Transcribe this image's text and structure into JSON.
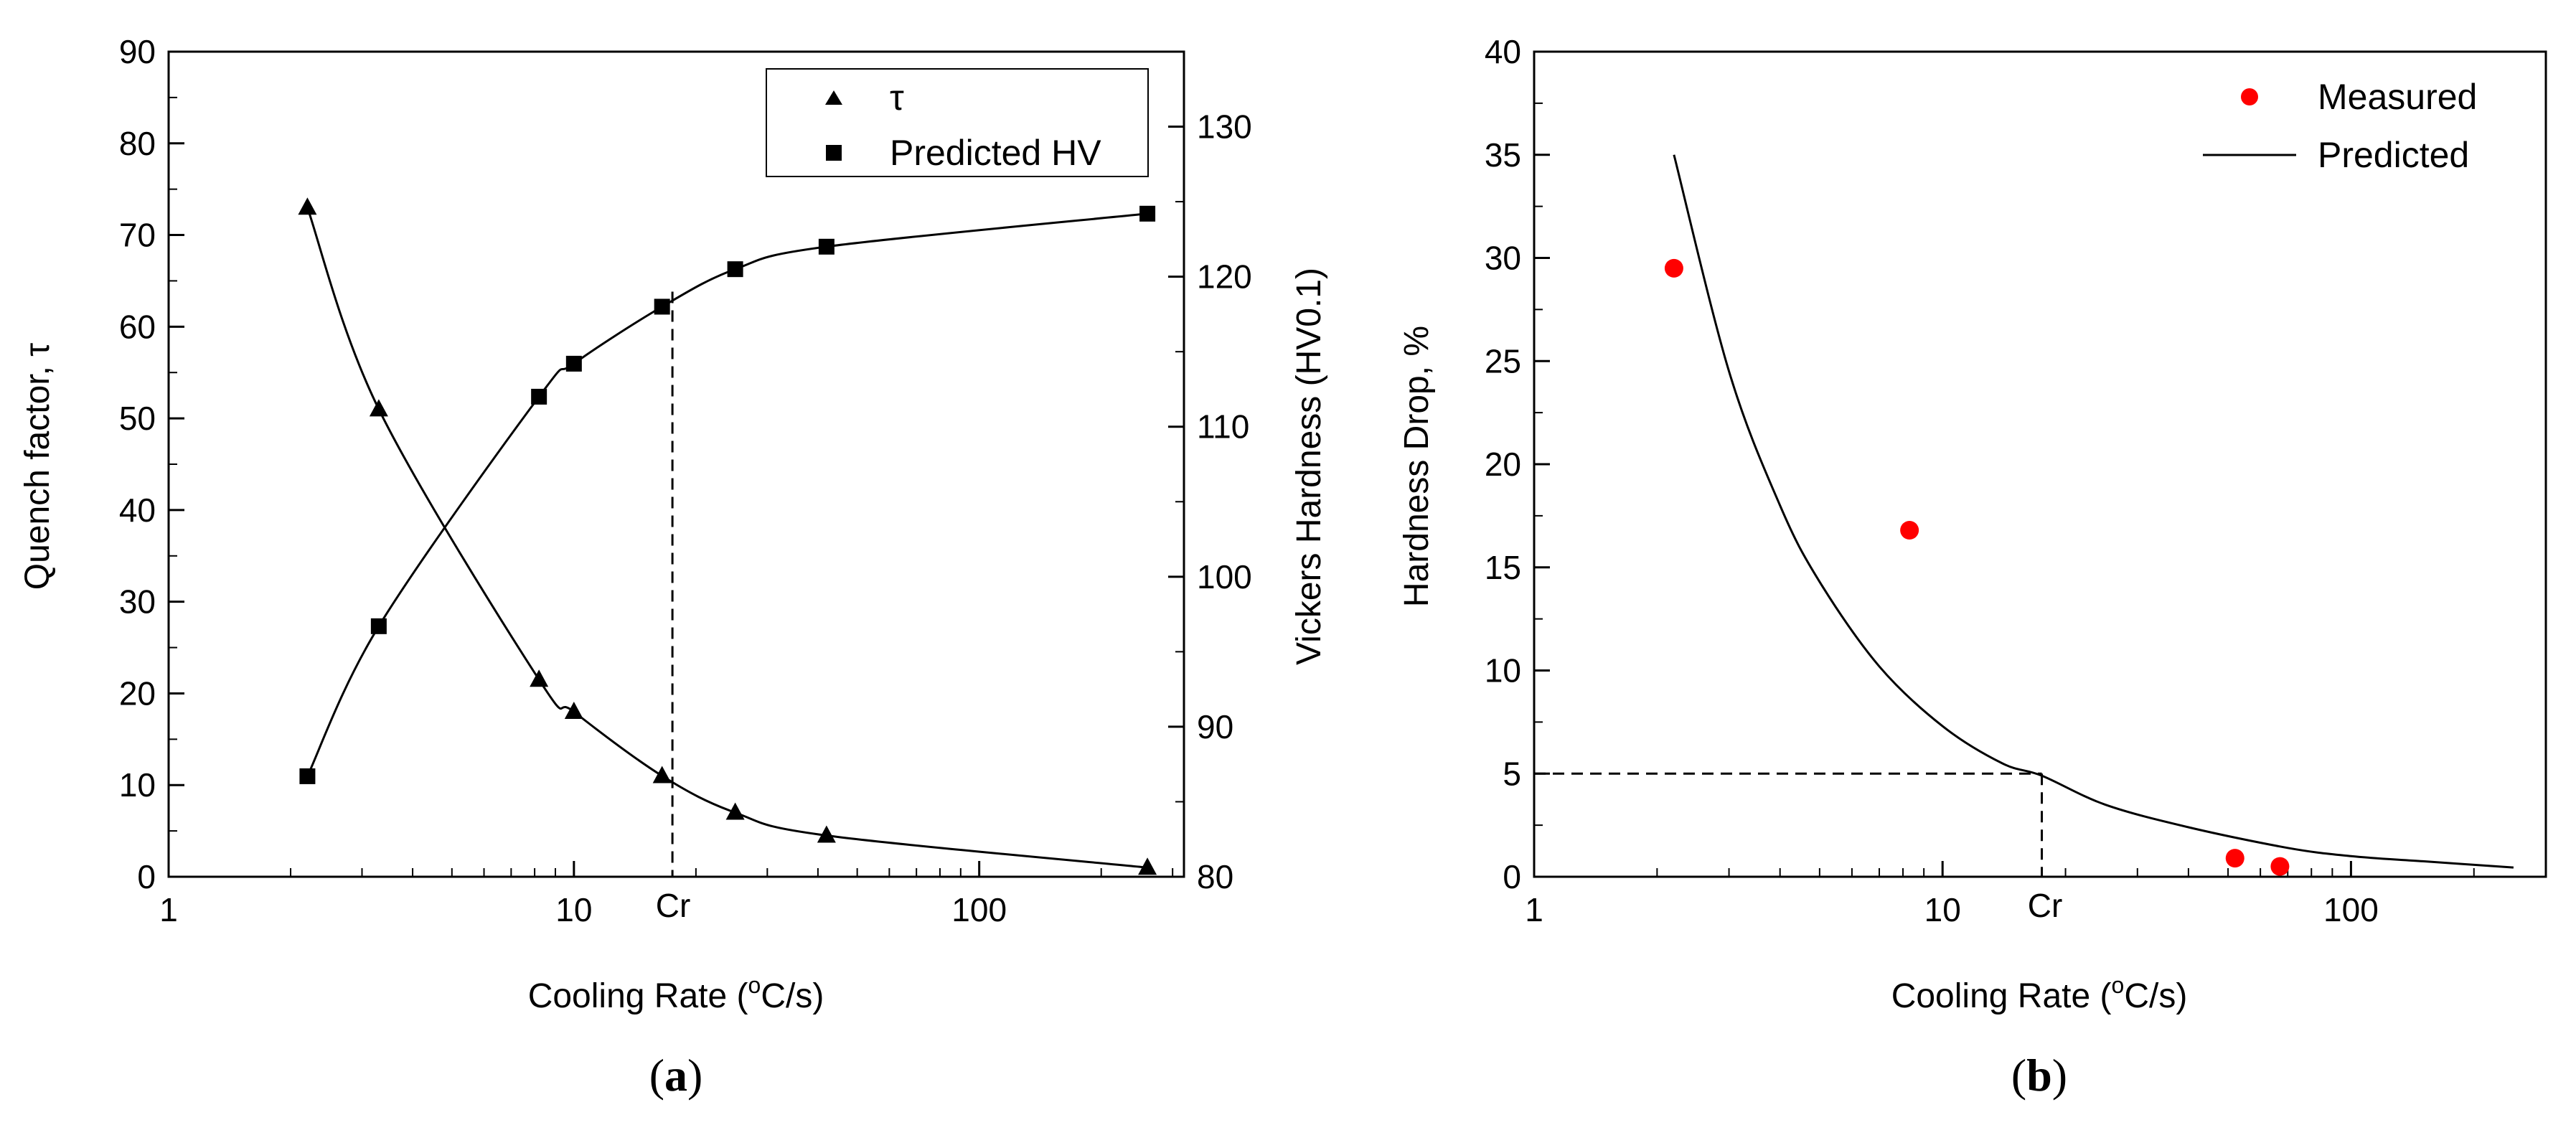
{
  "chart_data": [
    {
      "id": "a",
      "type": "scatter",
      "caption_letter": "a",
      "xlabel_main": "Cooling Rate (",
      "xlabel_sup": "o",
      "xlabel_tail": "C/s)",
      "xscale": "log",
      "xlim": [
        1,
        320
      ],
      "x_tick_labels": [
        "1",
        "10",
        "100"
      ],
      "x_ticks": [
        1,
        10,
        100
      ],
      "ylabel_left": "Quench factor, τ",
      "ylim_left": [
        0,
        90
      ],
      "y_ticks_left": [
        0,
        10,
        20,
        30,
        40,
        50,
        60,
        70,
        80,
        90
      ],
      "ylabel_right": "Vickers Hardness (HV0.1)",
      "ylim_right": [
        80,
        135
      ],
      "y_ticks_right": [
        80,
        90,
        100,
        110,
        120,
        130
      ],
      "marker_label": "Cr",
      "marker_x": 17.5,
      "marker_y_right": 119,
      "legend_position": "top-right",
      "series": [
        {
          "name": "τ",
          "axis": "left",
          "marker": "triangle",
          "x": [
            2.2,
            3.3,
            8.2,
            10,
            16.5,
            25,
            42,
            260
          ],
          "y": [
            73,
            51,
            21.5,
            18,
            11,
            7,
            4.5,
            1
          ]
        },
        {
          "name": "Predicted HV",
          "axis": "right",
          "marker": "square",
          "x": [
            2.2,
            3.3,
            8.2,
            10,
            16.5,
            25,
            42,
            260
          ],
          "y": [
            86.7,
            96.7,
            112,
            114.2,
            118,
            120.5,
            122,
            124.2
          ]
        }
      ]
    },
    {
      "id": "b",
      "type": "scatter",
      "caption_letter": "b",
      "xlabel_main": "Cooling Rate (",
      "xlabel_sup": "o",
      "xlabel_tail": "C/s)",
      "xscale": "log",
      "xlim": [
        1,
        300
      ],
      "x_tick_labels": [
        "1",
        "10",
        "100"
      ],
      "x_ticks": [
        1,
        10,
        100
      ],
      "ylabel": "Hardness Drop, %",
      "ylim": [
        0,
        40
      ],
      "y_ticks": [
        0,
        5,
        10,
        15,
        20,
        25,
        30,
        35,
        40
      ],
      "marker_label": "Cr",
      "marker_x": 17.5,
      "marker_y": 5,
      "legend_position": "top-right",
      "series": [
        {
          "name": "Measured",
          "marker": "circle",
          "color": "#ff0000",
          "x": [
            2.2,
            8.3,
            52,
            67
          ],
          "y": [
            29.5,
            16.8,
            0.9,
            0.5
          ]
        },
        {
          "name": "Predicted",
          "style": "line",
          "x": [
            2.2,
            3,
            4,
            5,
            7,
            10,
            14,
            17.5,
            25,
            40,
            70,
            100,
            150,
            250
          ],
          "y": [
            35,
            24.5,
            18,
            14.3,
            10.2,
            7.3,
            5.5,
            4.9,
            3.5,
            2.4,
            1.4,
            1.0,
            0.75,
            0.45
          ]
        }
      ]
    }
  ]
}
